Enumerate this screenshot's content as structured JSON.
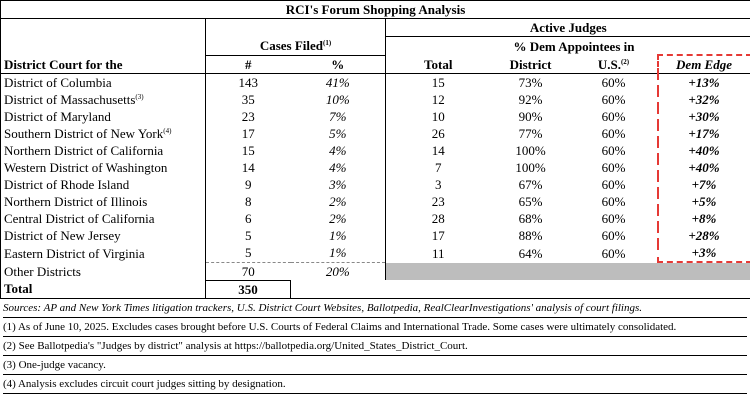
{
  "title": "RCI's Forum Shopping Analysis",
  "header": {
    "judges_group": "Active Judges",
    "cases_group": "Cases Filed",
    "cases_group_note": "(1)",
    "dem_group": "% Dem Appointees in",
    "columns": [
      "District Court for the",
      "#",
      "%",
      "Total",
      "District",
      "U.S.",
      "Dem Edge"
    ],
    "us_note": "(2)"
  },
  "rows": [
    {
      "district": "District of Columbia",
      "cases": "143",
      "pct": "41%",
      "total": "15",
      "dem_district": "73%",
      "dem_us": "60%",
      "edge": "+13%"
    },
    {
      "district": "District of Massachusetts",
      "note": "(3)",
      "cases": "35",
      "pct": "10%",
      "total": "12",
      "dem_district": "92%",
      "dem_us": "60%",
      "edge": "+32%"
    },
    {
      "district": "District of Maryland",
      "cases": "23",
      "pct": "7%",
      "total": "10",
      "dem_district": "90%",
      "dem_us": "60%",
      "edge": "+30%"
    },
    {
      "district": "Southern District of New York",
      "note": "(4)",
      "cases": "17",
      "pct": "5%",
      "total": "26",
      "dem_district": "77%",
      "dem_us": "60%",
      "edge": "+17%"
    },
    {
      "district": "Northern District of California",
      "cases": "15",
      "pct": "4%",
      "total": "14",
      "dem_district": "100%",
      "dem_us": "60%",
      "edge": "+40%"
    },
    {
      "district": "Western District of Washington",
      "cases": "14",
      "pct": "4%",
      "total": "7",
      "dem_district": "100%",
      "dem_us": "60%",
      "edge": "+40%"
    },
    {
      "district": "District of Rhode Island",
      "cases": "9",
      "pct": "3%",
      "total": "3",
      "dem_district": "67%",
      "dem_us": "60%",
      "edge": "+7%"
    },
    {
      "district": "Northern District of Illinois",
      "cases": "8",
      "pct": "2%",
      "total": "23",
      "dem_district": "65%",
      "dem_us": "60%",
      "edge": "+5%"
    },
    {
      "district": "Central District of California",
      "cases": "6",
      "pct": "2%",
      "total": "28",
      "dem_district": "68%",
      "dem_us": "60%",
      "edge": "+8%"
    },
    {
      "district": "District of New Jersey",
      "cases": "5",
      "pct": "1%",
      "total": "17",
      "dem_district": "88%",
      "dem_us": "60%",
      "edge": "+28%"
    },
    {
      "district": "Eastern District of Virginia",
      "cases": "5",
      "pct": "1%",
      "total": "11",
      "dem_district": "64%",
      "dem_us": "60%",
      "edge": "+3%"
    }
  ],
  "other": {
    "district": "Other Districts",
    "cases": "70",
    "pct": "20%"
  },
  "total": {
    "label": "Total",
    "cases": "350"
  },
  "sources": "Sources: AP and New York Times litigation trackers, U.S. District Court Websites, Ballotpedia, RealClearInvestigations' analysis of court filings.",
  "notes": [
    "(1) As of June 10, 2025. Excludes cases brought before U.S. Courts of Federal Claims and International Trade. Some cases were ultimately consolidated.",
    "(2) See Ballotpedia's \"Judges by district\" analysis at https://ballotpedia.org/United_States_District_Court.",
    "(3) One-judge vacancy.",
    "(4) Analysis excludes circuit court judges sitting by designation."
  ]
}
